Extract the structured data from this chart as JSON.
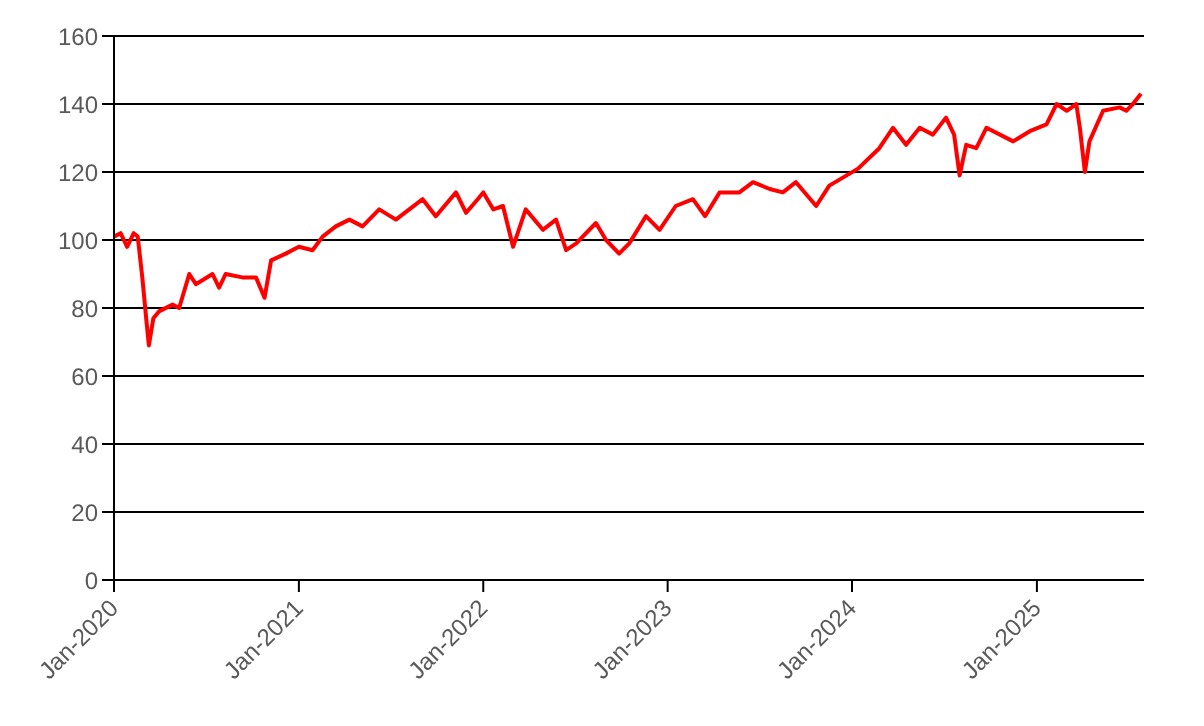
{
  "chart_data": {
    "type": "line",
    "x": [
      "2020-01-01",
      "2020-01-14",
      "2020-01-27",
      "2020-02-09",
      "2020-02-17",
      "2020-02-26",
      "2020-03-06",
      "2020-03-10",
      "2020-03-19",
      "2020-03-30",
      "2020-04-26",
      "2020-05-09",
      "2020-05-29",
      "2020-06-11",
      "2020-07-14",
      "2020-07-27",
      "2020-08-09",
      "2020-09-11",
      "2020-10-08",
      "2020-10-25",
      "2020-11-07",
      "2020-12-06",
      "2021-01-01",
      "2021-01-28",
      "2021-02-17",
      "2021-03-15",
      "2021-04-11",
      "2021-05-07",
      "2021-06-09",
      "2021-07-12",
      "2021-09-03",
      "2021-09-29",
      "2021-11-08",
      "2021-11-28",
      "2021-12-21",
      "2022-01-01",
      "2022-01-21",
      "2022-02-09",
      "2022-03-01",
      "2022-03-26",
      "2022-04-29",
      "2022-05-25",
      "2022-06-14",
      "2022-07-04",
      "2022-08-12",
      "2022-09-01",
      "2022-09-27",
      "2022-10-17",
      "2022-11-19",
      "2022-12-16",
      "2023-01-17",
      "2023-02-20",
      "2023-03-16",
      "2023-04-14",
      "2023-05-23",
      "2023-06-19",
      "2023-07-22",
      "2023-08-17",
      "2023-09-12",
      "2023-10-22",
      "2023-11-17",
      "2024-01-13",
      "2024-02-24",
      "2024-03-22",
      "2024-04-17",
      "2024-05-14",
      "2024-06-09",
      "2024-07-05",
      "2024-07-21",
      "2024-08-01",
      "2024-08-14",
      "2024-09-03",
      "2024-09-23",
      "2024-11-15",
      "2024-12-18",
      "2025-01-20",
      "2025-02-09",
      "2025-03-01",
      "2025-03-20",
      "2025-03-27",
      "2025-04-06",
      "2025-04-15",
      "2025-05-12",
      "2025-06-14",
      "2025-06-27",
      "2025-07-10",
      "2025-07-26"
    ],
    "series": [
      {
        "color": "#ff0000",
        "values": [
          101,
          102,
          98,
          102,
          101,
          89,
          75,
          69,
          77,
          79,
          81,
          80,
          90,
          87,
          90,
          86,
          90,
          89,
          89,
          83,
          94,
          96,
          98,
          97,
          101,
          104,
          106,
          104,
          109,
          106,
          112,
          107,
          114,
          108,
          112,
          114,
          109,
          110,
          98,
          109,
          103,
          106,
          97,
          99,
          105,
          100,
          96,
          99,
          107,
          103,
          110,
          112,
          107,
          114,
          114,
          117,
          115,
          114,
          117,
          110,
          116,
          121,
          127,
          133,
          128,
          133,
          131,
          136,
          131,
          119,
          128,
          127,
          133,
          129,
          132,
          134,
          140,
          138,
          140,
          133,
          120,
          129,
          138,
          139,
          138,
          140,
          143
        ]
      }
    ],
    "xlim": [
      "2020-01-01",
      "2025-08-01"
    ],
    "xticks": [
      {
        "value": "2020-01-01",
        "label": "Jan-2020"
      },
      {
        "value": "2021-01-01",
        "label": "Jan-2021"
      },
      {
        "value": "2022-01-01",
        "label": "Jan-2022"
      },
      {
        "value": "2023-01-01",
        "label": "Jan-2023"
      },
      {
        "value": "2024-01-01",
        "label": "Jan-2024"
      },
      {
        "value": "2025-01-01",
        "label": "Jan-2025"
      }
    ],
    "ylim": [
      0,
      160
    ],
    "yticks": [
      0,
      20,
      40,
      60,
      80,
      100,
      120,
      140,
      160
    ],
    "grid": "y",
    "legend": false,
    "marker": "none",
    "line_style": "solid"
  }
}
